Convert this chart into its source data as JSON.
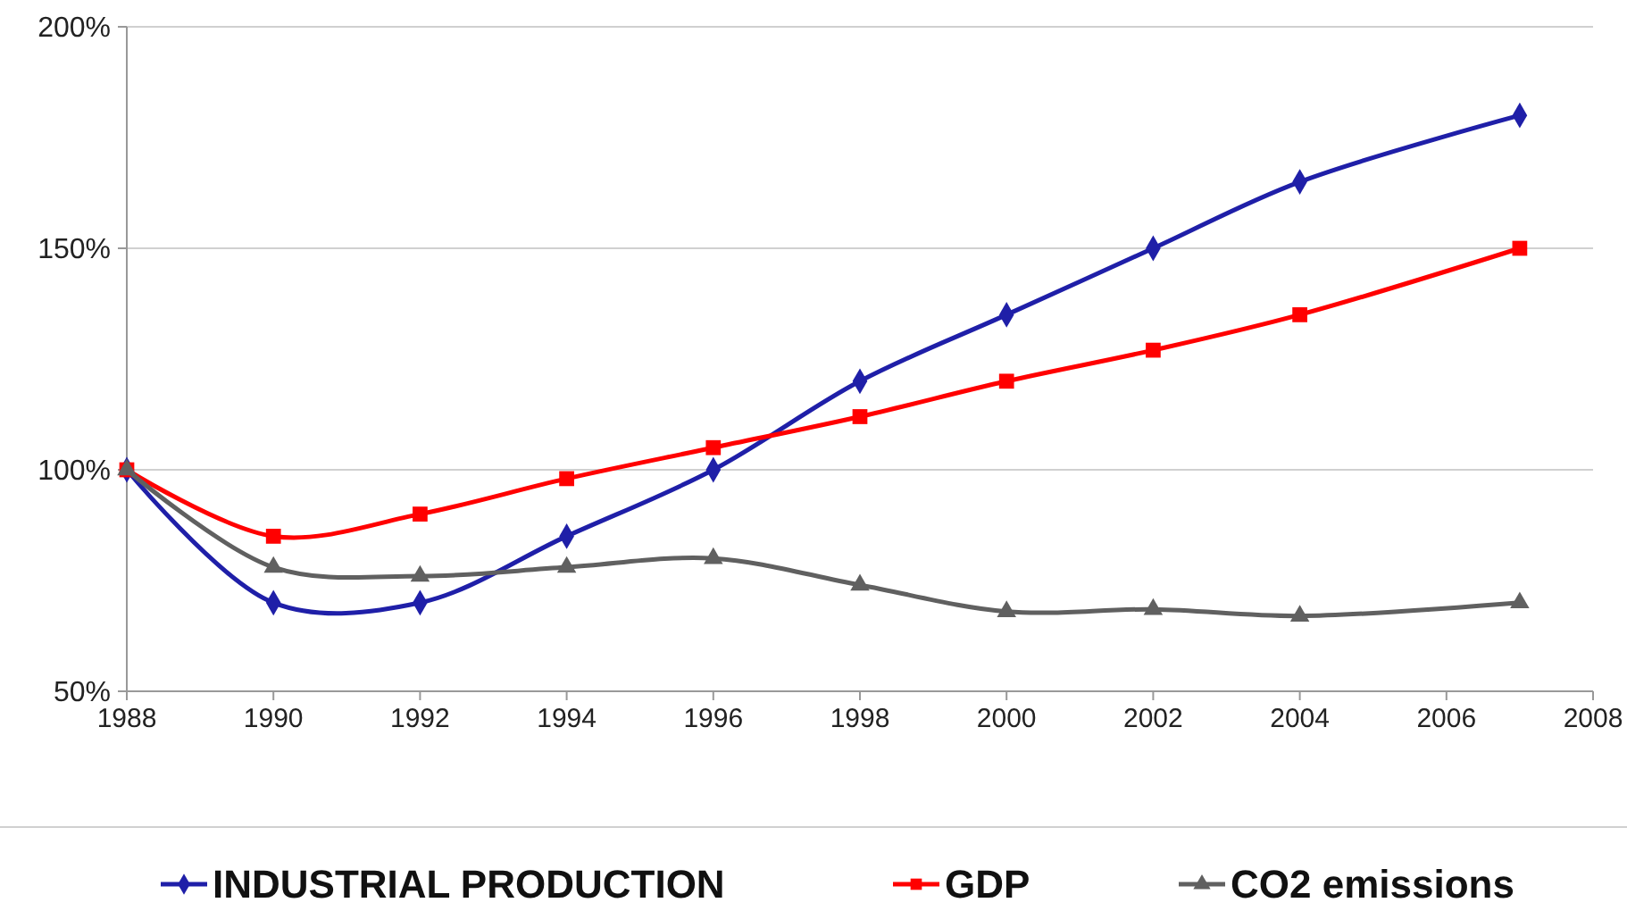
{
  "chart_data": {
    "type": "line",
    "x": [
      1988,
      1990,
      1992,
      1994,
      1996,
      1998,
      2000,
      2002,
      2004,
      2007
    ],
    "series": [
      {
        "name": "INDUSTRIAL PRODUCTION",
        "color": "#1f1fa8",
        "marker": "diamond",
        "values": [
          100,
          70,
          70,
          85,
          100,
          120,
          135,
          150,
          165,
          180
        ]
      },
      {
        "name": "GDP",
        "color": "#ff0000",
        "marker": "square",
        "values": [
          100,
          85,
          90,
          98,
          105,
          112,
          120,
          127,
          135,
          150
        ]
      },
      {
        "name": "CO2 emissions",
        "color": "#606060",
        "marker": "triangle",
        "values": [
          100,
          78,
          76,
          78,
          80,
          74,
          68,
          68.5,
          67,
          70
        ]
      }
    ],
    "xlim": [
      1988,
      2008
    ],
    "xticks": [
      1988,
      1990,
      1992,
      1994,
      1996,
      1998,
      2000,
      2002,
      2004,
      2006,
      2008
    ],
    "ylim": [
      50,
      200
    ],
    "yticks": [
      {
        "value": 50,
        "label": "50%"
      },
      {
        "value": 100,
        "label": "100%"
      },
      {
        "value": 150,
        "label": "150%"
      },
      {
        "value": 200,
        "label": "200%"
      }
    ],
    "grid": "y",
    "legend": "bottom"
  }
}
